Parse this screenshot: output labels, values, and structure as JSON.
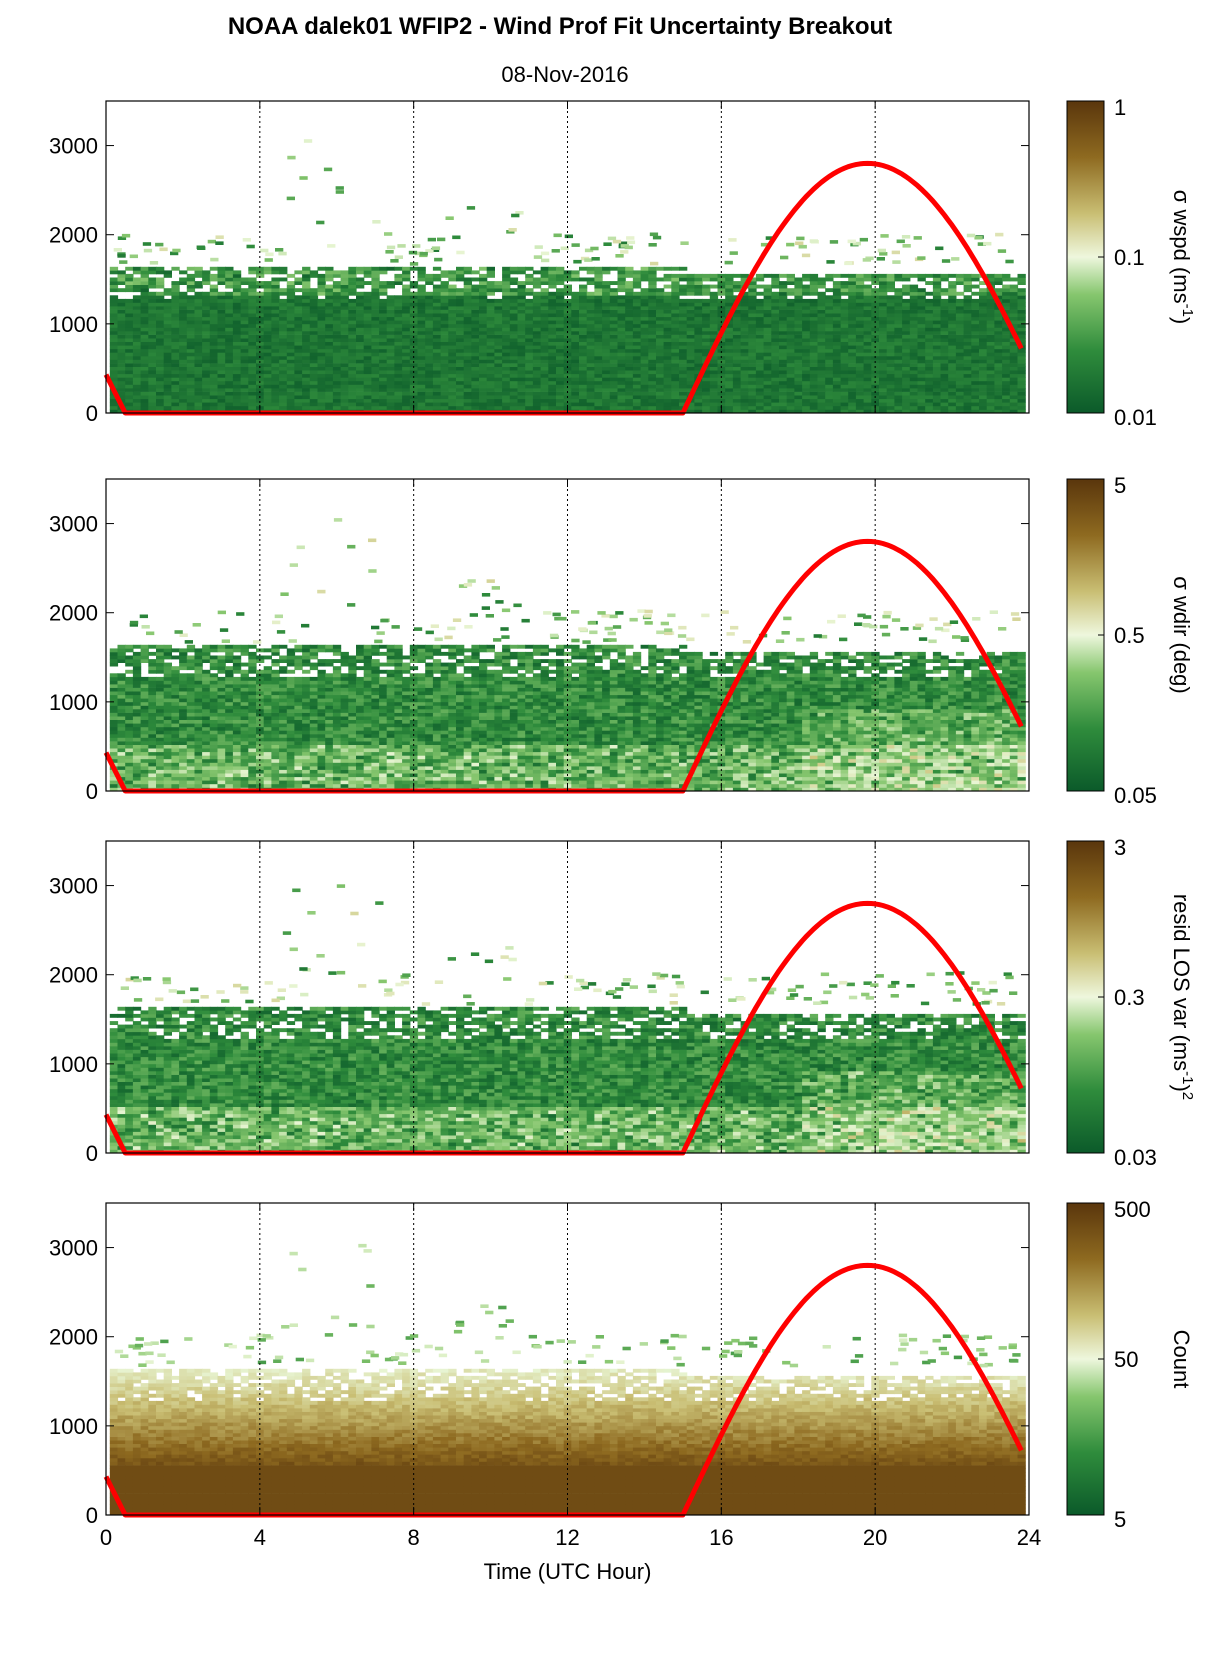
{
  "title": "NOAA dalek01 WFIP2 - Wind Prof Fit Uncertainty Breakout",
  "subtitle": "08-Nov-2016",
  "colors": {
    "sun_curve": "#ff0000",
    "colormap": [
      "#0b5a2a",
      "#2f8c3c",
      "#86c66e",
      "#e8f5d3",
      "#c9be73",
      "#8e6a20",
      "#5a360c"
    ]
  },
  "chart_data": [
    {
      "type": "heatmap",
      "panel": "wspd",
      "xlabel": "",
      "ylabel": "",
      "xlim": [
        0,
        24
      ],
      "ylim": [
        0,
        3500
      ],
      "x_ticks": [
        "0",
        "4",
        "8",
        "12",
        "16",
        "20",
        "24"
      ],
      "y_ticks": [
        "0",
        "1000",
        "2000",
        "3000"
      ],
      "grid_x": [
        4,
        8,
        12,
        16,
        20
      ],
      "colorbar": {
        "label": "σ wspd (ms",
        "label_sup": "-1",
        "label_end": ")",
        "scale": "log",
        "ticks": [
          "0.01",
          "0.1",
          "1"
        ]
      },
      "sun_elevation_curve": {
        "x": [
          0,
          0.5,
          15.0,
          19.8,
          23.9
        ],
        "y": [
          430,
          0,
          0,
          2800,
          680
        ]
      }
    },
    {
      "type": "heatmap",
      "panel": "wdir",
      "xlabel": "",
      "ylabel": "",
      "xlim": [
        0,
        24
      ],
      "ylim": [
        0,
        3500
      ],
      "x_ticks": [
        "0",
        "4",
        "8",
        "12",
        "16",
        "20",
        "24"
      ],
      "y_ticks": [
        "0",
        "1000",
        "2000",
        "3000"
      ],
      "grid_x": [
        4,
        8,
        12,
        16,
        20
      ],
      "colorbar": {
        "label": "σ wdir (deg)",
        "scale": "log",
        "ticks": [
          "0.05",
          "0.5",
          "5"
        ]
      },
      "sun_elevation_curve": {
        "x": [
          0,
          0.5,
          15.0,
          19.8,
          23.9
        ],
        "y": [
          430,
          0,
          0,
          2800,
          680
        ]
      }
    },
    {
      "type": "heatmap",
      "panel": "resid",
      "xlabel": "",
      "ylabel": "",
      "xlim": [
        0,
        24
      ],
      "ylim": [
        0,
        3500
      ],
      "x_ticks": [
        "0",
        "4",
        "8",
        "12",
        "16",
        "20",
        "24"
      ],
      "y_ticks": [
        "0",
        "1000",
        "2000",
        "3000"
      ],
      "grid_x": [
        4,
        8,
        12,
        16,
        20
      ],
      "colorbar": {
        "label": "resid LOS var (ms",
        "label_sup": "-1",
        "label_end": ")",
        "label_sup2": "2",
        "scale": "log",
        "ticks": [
          "0.03",
          "0.3",
          "3"
        ]
      },
      "sun_elevation_curve": {
        "x": [
          0,
          0.5,
          15.0,
          19.8,
          23.9
        ],
        "y": [
          430,
          0,
          0,
          2800,
          680
        ]
      }
    },
    {
      "type": "heatmap",
      "panel": "count",
      "xlabel": "Time (UTC Hour)",
      "ylabel": "",
      "xlim": [
        0,
        24
      ],
      "ylim": [
        0,
        3500
      ],
      "x_ticks": [
        "0",
        "4",
        "8",
        "12",
        "16",
        "20",
        "24"
      ],
      "y_ticks": [
        "0",
        "1000",
        "2000",
        "3000"
      ],
      "grid_x": [
        4,
        8,
        12,
        16,
        20
      ],
      "colorbar": {
        "label": "Count",
        "scale": "log",
        "ticks": [
          "5",
          "50",
          "500"
        ]
      },
      "sun_elevation_curve": {
        "x": [
          0,
          0.5,
          15.0,
          19.8,
          23.9
        ],
        "y": [
          430,
          0,
          0,
          2800,
          680
        ]
      }
    }
  ]
}
